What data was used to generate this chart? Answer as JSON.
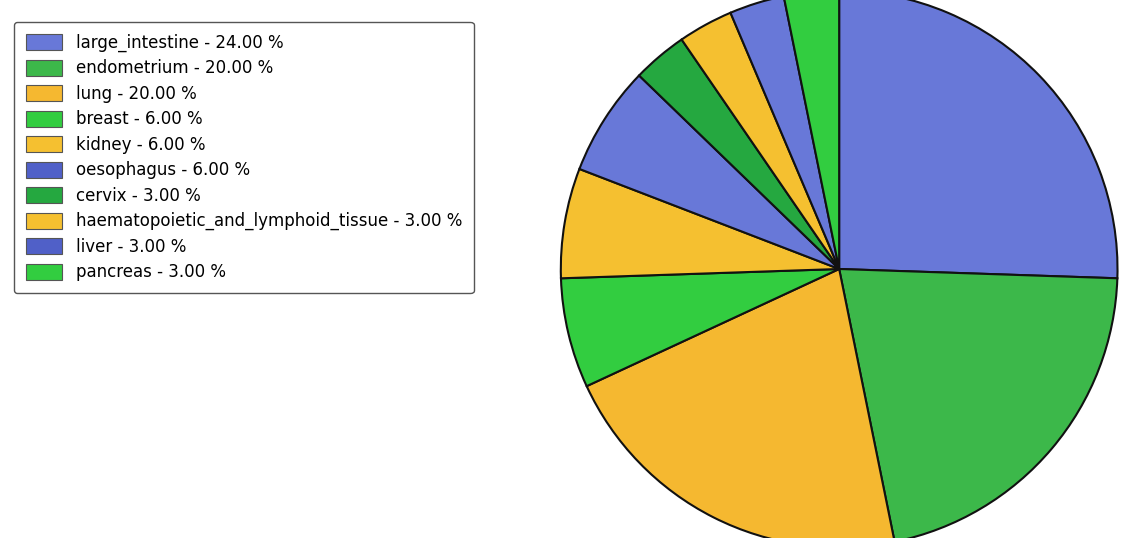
{
  "labels": [
    "large_intestine - 24.00 %",
    "endometrium - 20.00 %",
    "lung - 20.00 %",
    "breast - 6.00 %",
    "kidney - 6.00 %",
    "oesophagus - 6.00 %",
    "cervix - 3.00 %",
    "haematopoietic_and_lymphoid_tissue - 3.00 %",
    "liver - 3.00 %",
    "pancreas - 3.00 %"
  ],
  "sizes": [
    24,
    20,
    20,
    6,
    6,
    6,
    3,
    3,
    3,
    3
  ],
  "colors": [
    "#6878d8",
    "#3cb84a",
    "#f5b830",
    "#32cd40",
    "#f5c030",
    "#6878d8",
    "#25a840",
    "#f5c030",
    "#6878d8",
    "#32cd40"
  ],
  "startangle": 90,
  "counterclock": false,
  "figsize": [
    11.34,
    5.38
  ],
  "dpi": 100,
  "legend_fontsize": 12,
  "edgecolor": "#111111",
  "linewidth": 1.5,
  "legend_colors": [
    "#6878d8",
    "#3cb84a",
    "#f5b830",
    "#32cd40",
    "#f5c030",
    "#5060c8",
    "#25a840",
    "#f5c030",
    "#5060c8",
    "#32cd40"
  ]
}
